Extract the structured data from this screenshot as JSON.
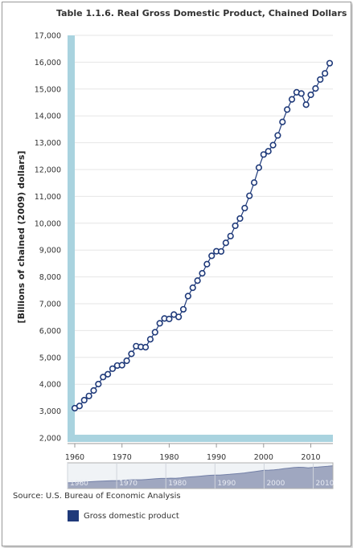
{
  "title": "Table 1.1.6. Real Gross Domestic Product, Chained Dollars",
  "source": "Source: U.S. Bureau of Economic Analysis",
  "chart_data": {
    "type": "line",
    "title": "Table 1.1.6. Real Gross Domestic Product, Chained Dollars",
    "xlabel": "",
    "ylabel": "[Billions of chained (2009) dollars]",
    "xlim": [
      1960,
      2014
    ],
    "ylim": [
      2000,
      17000
    ],
    "yticks": [
      "2,000",
      "3,000",
      "4,000",
      "5,000",
      "6,000",
      "7,000",
      "8,000",
      "9,000",
      "10,000",
      "11,000",
      "12,000",
      "13,000",
      "14,000",
      "15,000",
      "16,000",
      "17,000"
    ],
    "xticks": [
      "1960",
      "1970",
      "1980",
      "1990",
      "2000",
      "2010"
    ],
    "navigator_ticks": [
      "1960",
      "1970",
      "1980",
      "1990",
      "2000",
      "2010"
    ],
    "grid": true,
    "legend": "bottom-left",
    "series": [
      {
        "name": "Gross domestic product",
        "color": "#1f3a7a",
        "x": [
          1960,
          1961,
          1962,
          1963,
          1964,
          1965,
          1966,
          1967,
          1968,
          1969,
          1970,
          1971,
          1972,
          1973,
          1974,
          1975,
          1976,
          1977,
          1978,
          1979,
          1980,
          1981,
          1982,
          1983,
          1984,
          1985,
          1986,
          1987,
          1988,
          1989,
          1990,
          1991,
          1992,
          1993,
          1994,
          1995,
          1996,
          1997,
          1998,
          1999,
          2000,
          2001,
          2002,
          2003,
          2004,
          2005,
          2006,
          2007,
          2008,
          2009,
          2010,
          2011,
          2012,
          2013,
          2014
        ],
        "values": [
          3108,
          3189,
          3408,
          3563,
          3767,
          4005,
          4269,
          4373,
          4580,
          4697,
          4710,
          4874,
          5133,
          5419,
          5391,
          5380,
          5676,
          5937,
          6270,
          6450,
          6433,
          6596,
          6508,
          6793,
          7285,
          7594,
          7860,
          8133,
          8475,
          8786,
          8955,
          8948,
          9267,
          9521,
          9906,
          10175,
          10564,
          11022,
          11514,
          12071,
          12560,
          12682,
          12909,
          13271,
          13774,
          14235,
          14615,
          14877,
          14834,
          14418,
          14784,
          15021,
          15355,
          15583,
          15962
        ]
      }
    ]
  }
}
